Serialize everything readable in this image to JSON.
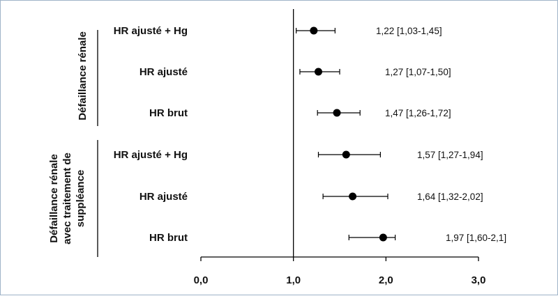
{
  "chart_data": {
    "type": "forest",
    "title": "",
    "xlabel": "",
    "ylabel": "",
    "xlim": [
      0,
      3
    ],
    "xticks": [
      "0,0",
      "1,0",
      "2,0",
      "3,0"
    ],
    "reference_line": 1.0,
    "groups": [
      {
        "name": "Défaillance rénale",
        "rows": [
          {
            "label": "HR ajusté + Hg",
            "hr": 1.22,
            "ci_low": 1.03,
            "ci_high": 1.45,
            "text": "1,22 [1,03-1,45]"
          },
          {
            "label": "HR ajusté",
            "hr": 1.27,
            "ci_low": 1.07,
            "ci_high": 1.5,
            "text": "1,27 [1,07-1,50]"
          },
          {
            "label": "HR brut",
            "hr": 1.47,
            "ci_low": 1.26,
            "ci_high": 1.72,
            "text": "1,47 [1,26-1,72]"
          }
        ]
      },
      {
        "name": "Défaillance rénale avec traitement de suppléance",
        "name_lines": [
          "Défaillance rénale",
          "avec traitement de",
          "suppléance"
        ],
        "rows": [
          {
            "label": "HR ajusté + Hg",
            "hr": 1.57,
            "ci_low": 1.27,
            "ci_high": 1.94,
            "text": "1,57 [1,27-1,94]"
          },
          {
            "label": "HR ajusté",
            "hr": 1.64,
            "ci_low": 1.32,
            "ci_high": 2.02,
            "text": "1,64 [1,32-2,02]"
          },
          {
            "label": "HR brut",
            "hr": 1.97,
            "ci_low": 1.6,
            "ci_high": 2.1,
            "text": "1,97 [1,60-2,1]"
          }
        ]
      }
    ],
    "colors": {
      "marker": "#000000",
      "line": "#000000",
      "frame": "#9fb3c8"
    }
  }
}
